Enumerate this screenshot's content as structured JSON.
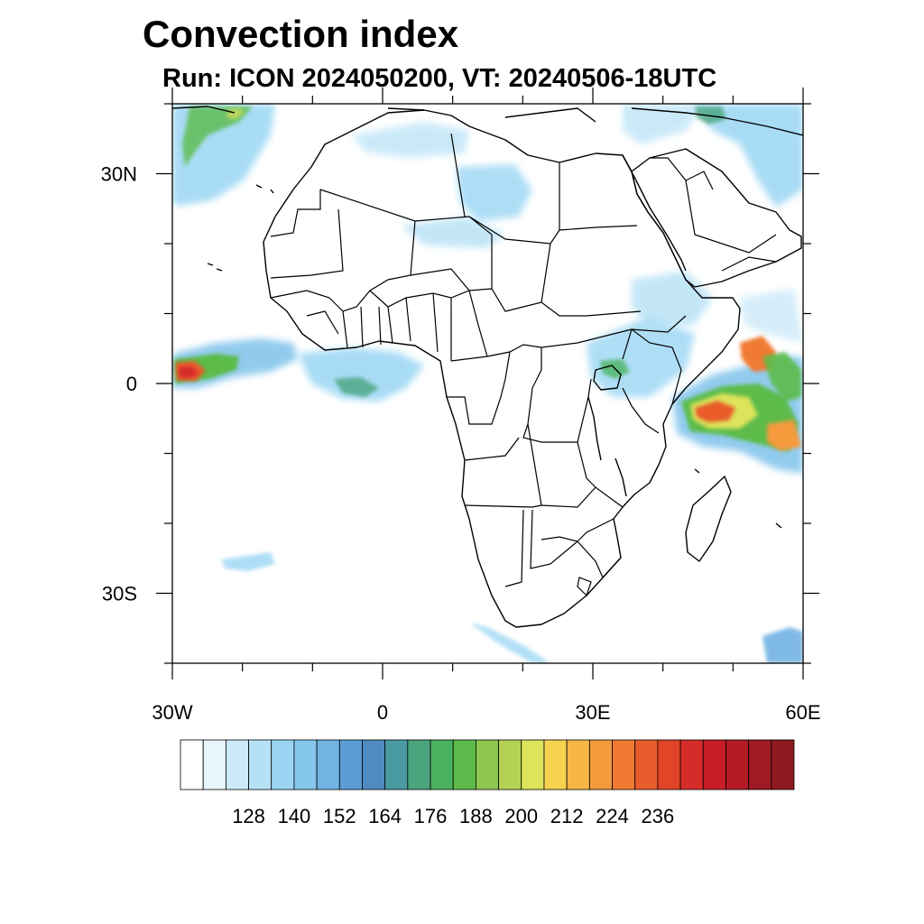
{
  "header": {
    "title": "Convection index",
    "subtitle": "Run: ICON 2024050200,  VT: 20240506-18UTC"
  },
  "map": {
    "lon_range": [
      -30,
      60
    ],
    "lat_range": [
      -40,
      40
    ],
    "lon_ticks": [
      {
        "value": -30,
        "label": "30W"
      },
      {
        "value": 0,
        "label": "0"
      },
      {
        "value": 30,
        "label": "30E"
      },
      {
        "value": 60,
        "label": "60E"
      }
    ],
    "lat_ticks": [
      {
        "value": 30,
        "label": "30N"
      },
      {
        "value": 0,
        "label": "0"
      },
      {
        "value": -30,
        "label": "30S"
      }
    ],
    "background": "#ffffff",
    "coastline_color": "#000000"
  },
  "colorbar": {
    "colors": [
      "#ffffff",
      "#e8f5fc",
      "#cbe9f8",
      "#b5e1f6",
      "#9ad6f4",
      "#85c6ec",
      "#72b3e3",
      "#5b9dd4",
      "#4f8bbf",
      "#4a9aa3",
      "#4aa57f",
      "#4ab25e",
      "#5cbb4a",
      "#8ec650",
      "#b5d155",
      "#dde35a",
      "#f5d24f",
      "#f7b746",
      "#f59a3c",
      "#f07a32",
      "#e95c2b",
      "#e14427",
      "#d62c29",
      "#c81d28",
      "#b31a26",
      "#9f1a22",
      "#8c1a1e"
    ],
    "labels": [
      "128",
      "140",
      "152",
      "164",
      "176",
      "188",
      "200",
      "212",
      "224",
      "236"
    ]
  }
}
